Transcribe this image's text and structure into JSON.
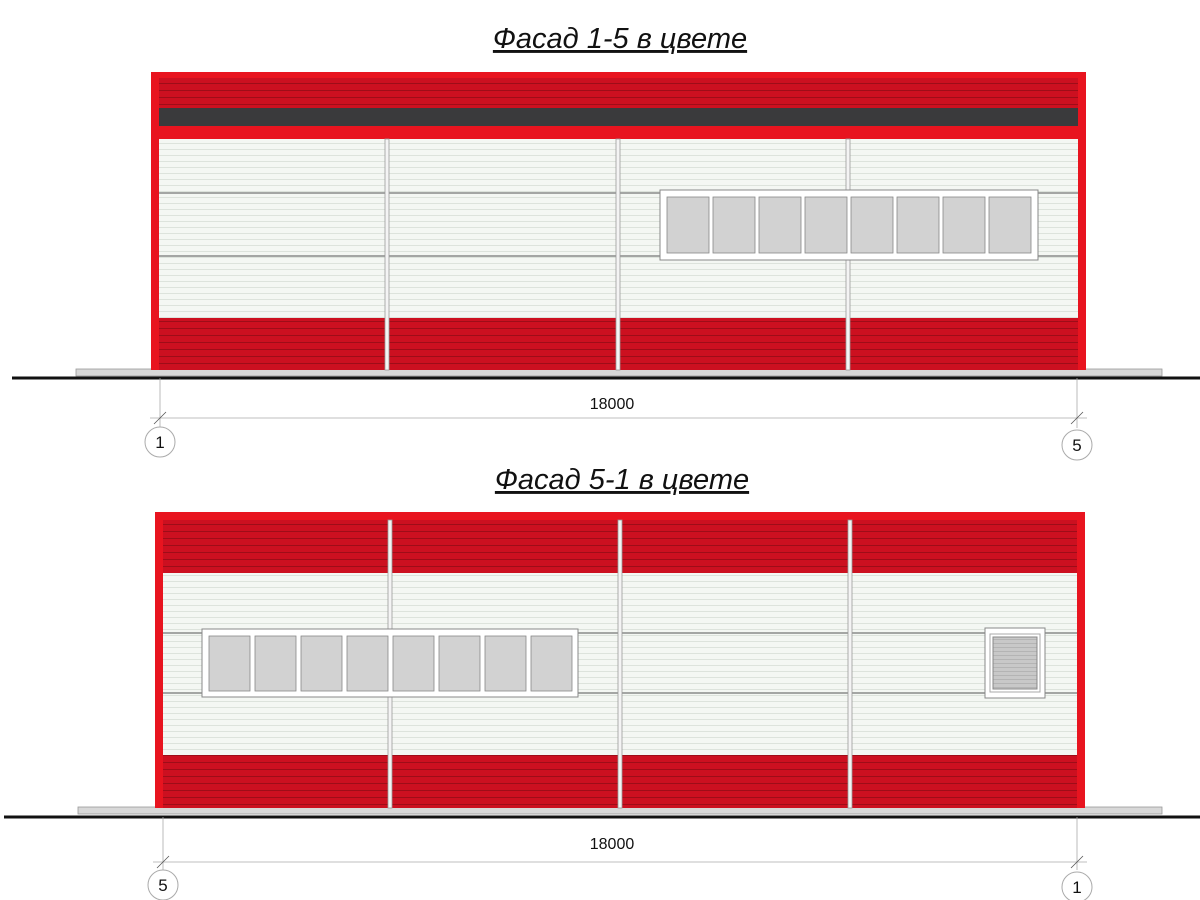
{
  "facades": [
    {
      "title": "Фасад 1-5 в цвете",
      "dimension": "18000",
      "axis_left": "1",
      "axis_right": "5"
    },
    {
      "title": "Фасад 5-1 в цвете",
      "dimension": "18000",
      "axis_left": "5",
      "axis_right": "1"
    }
  ],
  "colors": {
    "red_panel": "#cc1020",
    "red_trim": "#e8141f",
    "dark_band": "#3a3a3c",
    "wall_panel": "#f3f6f2",
    "window_glass": "#d2d2d2"
  }
}
